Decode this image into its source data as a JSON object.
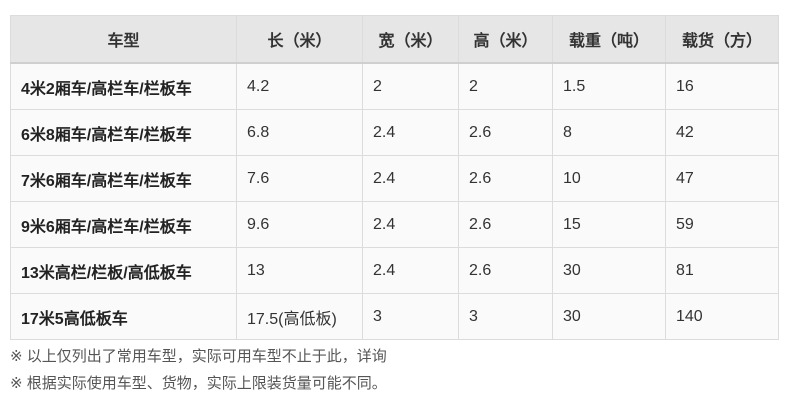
{
  "table": {
    "headers": [
      "车型",
      "长（米）",
      "宽（米）",
      "高（米）",
      "载重（吨）",
      "载货（方）"
    ],
    "rows": [
      [
        "4米2厢车/高栏车/栏板车",
        "4.2",
        "2",
        "2",
        "1.5",
        "16"
      ],
      [
        "6米8厢车/高栏车/栏板车",
        "6.8",
        "2.4",
        "2.6",
        "8",
        "42"
      ],
      [
        "7米6厢车/高栏车/栏板车",
        "7.6",
        "2.4",
        "2.6",
        "10",
        "47"
      ],
      [
        "9米6厢车/高栏车/栏板车",
        "9.6",
        "2.4",
        "2.6",
        "15",
        "59"
      ],
      [
        "13米高栏/栏板/高低板车",
        "13",
        "2.4",
        "2.6",
        "30",
        "81"
      ],
      [
        "17米5高低板车",
        "17.5(高低板)",
        "3",
        "3",
        "30",
        "140"
      ]
    ]
  },
  "notes": [
    "※ 以上仅列出了常用车型，实际可用车型不止于此，详询",
    "※ 根据实际使用车型、货物，实际上限装货量可能不同。"
  ]
}
